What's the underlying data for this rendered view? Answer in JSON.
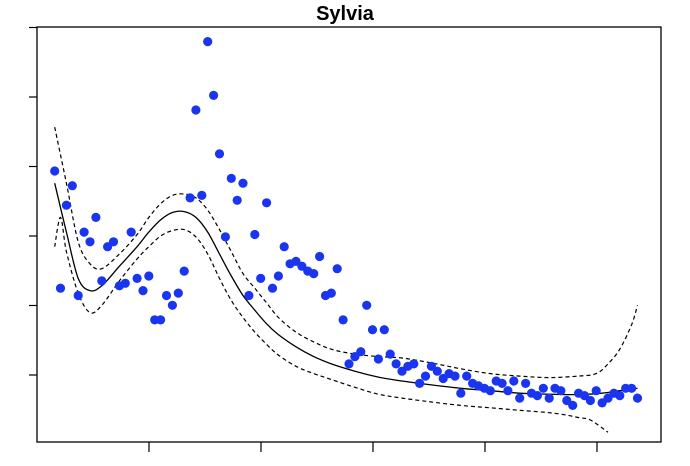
{
  "chart_data": {
    "type": "scatter",
    "title": "Sylvia",
    "xlabel": "",
    "ylabel": "",
    "x_tick_count": 5,
    "y_tick_count": 6,
    "grid": false,
    "legend": "none",
    "point_color": "#1a35f0",
    "line_color": "#000000",
    "points": [
      [
        1,
        5.55
      ],
      [
        2,
        3.15
      ],
      [
        3,
        4.85
      ],
      [
        4,
        5.25
      ],
      [
        5,
        3.0
      ],
      [
        6,
        4.3
      ],
      [
        7,
        4.1
      ],
      [
        8,
        4.6
      ],
      [
        9,
        3.3
      ],
      [
        10,
        4.0
      ],
      [
        11,
        4.1
      ],
      [
        12,
        3.2
      ],
      [
        13,
        3.25
      ],
      [
        14,
        4.3
      ],
      [
        15,
        3.35
      ],
      [
        16,
        3.1
      ],
      [
        17,
        3.4
      ],
      [
        18,
        2.5
      ],
      [
        19,
        2.5
      ],
      [
        20,
        3.0
      ],
      [
        21,
        2.8
      ],
      [
        22,
        3.05
      ],
      [
        23,
        3.5
      ],
      [
        24,
        5.0
      ],
      [
        25,
        6.8
      ],
      [
        26,
        5.05
      ],
      [
        27,
        8.2
      ],
      [
        28,
        7.1
      ],
      [
        29,
        5.9
      ],
      [
        30,
        4.2
      ],
      [
        31,
        5.4
      ],
      [
        32,
        4.95
      ],
      [
        33,
        5.3
      ],
      [
        34,
        3.0
      ],
      [
        35,
        4.25
      ],
      [
        36,
        3.35
      ],
      [
        37,
        4.9
      ],
      [
        38,
        3.15
      ],
      [
        39,
        3.4
      ],
      [
        40,
        4.0
      ],
      [
        41,
        3.65
      ],
      [
        42,
        3.7
      ],
      [
        43,
        3.6
      ],
      [
        44,
        3.5
      ],
      [
        45,
        3.45
      ],
      [
        46,
        3.8
      ],
      [
        47,
        3.0
      ],
      [
        48,
        3.05
      ],
      [
        49,
        3.55
      ],
      [
        50,
        2.5
      ],
      [
        51,
        1.6
      ],
      [
        52,
        1.75
      ],
      [
        53,
        1.85
      ],
      [
        54,
        2.8
      ],
      [
        55,
        2.3
      ],
      [
        56,
        1.7
      ],
      [
        57,
        2.3
      ],
      [
        58,
        1.8
      ],
      [
        59,
        1.6
      ],
      [
        60,
        1.45
      ],
      [
        61,
        1.55
      ],
      [
        62,
        1.6
      ],
      [
        63,
        1.2
      ],
      [
        64,
        1.35
      ],
      [
        65,
        1.55
      ],
      [
        66,
        1.45
      ],
      [
        67,
        1.3
      ],
      [
        68,
        1.4
      ],
      [
        69,
        1.35
      ],
      [
        70,
        1.0
      ],
      [
        71,
        1.35
      ],
      [
        72,
        1.2
      ],
      [
        73,
        1.15
      ],
      [
        74,
        1.1
      ],
      [
        75,
        1.05
      ],
      [
        76,
        1.25
      ],
      [
        77,
        1.2
      ],
      [
        78,
        1.05
      ],
      [
        79,
        1.25
      ],
      [
        80,
        0.9
      ],
      [
        81,
        1.2
      ],
      [
        82,
        1.0
      ],
      [
        83,
        0.95
      ],
      [
        84,
        1.1
      ],
      [
        85,
        0.9
      ],
      [
        86,
        1.1
      ],
      [
        87,
        1.05
      ],
      [
        88,
        0.85
      ],
      [
        89,
        0.75
      ],
      [
        90,
        1.0
      ],
      [
        91,
        0.95
      ],
      [
        92,
        0.85
      ],
      [
        93,
        1.05
      ],
      [
        94,
        0.8
      ],
      [
        95,
        0.9
      ],
      [
        96,
        1.0
      ],
      [
        97,
        0.95
      ],
      [
        98,
        1.1
      ],
      [
        99,
        1.1
      ],
      [
        100,
        0.9
      ]
    ],
    "fit_line": [
      [
        1,
        5.3
      ],
      [
        3,
        4.3
      ],
      [
        5,
        3.35
      ],
      [
        7,
        3.1
      ],
      [
        9,
        3.2
      ],
      [
        12,
        3.6
      ],
      [
        15,
        4.0
      ],
      [
        17,
        4.3
      ],
      [
        19,
        4.55
      ],
      [
        21,
        4.7
      ],
      [
        23,
        4.72
      ],
      [
        25,
        4.6
      ],
      [
        27,
        4.3
      ],
      [
        29,
        3.85
      ],
      [
        31,
        3.4
      ],
      [
        33,
        3.0
      ],
      [
        35,
        2.7
      ],
      [
        37,
        2.42
      ],
      [
        39,
        2.2
      ],
      [
        42,
        1.95
      ],
      [
        45,
        1.75
      ],
      [
        48,
        1.6
      ],
      [
        52,
        1.45
      ],
      [
        56,
        1.33
      ],
      [
        60,
        1.25
      ],
      [
        65,
        1.17
      ],
      [
        70,
        1.1
      ],
      [
        75,
        1.05
      ],
      [
        80,
        1.0
      ],
      [
        85,
        0.98
      ],
      [
        90,
        0.97
      ],
      [
        94,
        1.0
      ],
      [
        97,
        1.05
      ],
      [
        100,
        1.1
      ]
    ],
    "upper_band": [
      [
        1,
        6.45
      ],
      [
        3,
        5.3
      ],
      [
        5,
        4.1
      ],
      [
        7,
        3.65
      ],
      [
        9,
        3.55
      ],
      [
        12,
        3.85
      ],
      [
        15,
        4.25
      ],
      [
        17,
        4.6
      ],
      [
        19,
        4.88
      ],
      [
        21,
        5.05
      ],
      [
        23,
        5.08
      ],
      [
        25,
        5.0
      ],
      [
        27,
        4.75
      ],
      [
        29,
        4.35
      ],
      [
        31,
        3.9
      ],
      [
        33,
        3.45
      ],
      [
        35,
        3.15
      ],
      [
        37,
        2.85
      ],
      [
        39,
        2.55
      ],
      [
        42,
        2.25
      ],
      [
        45,
        2.05
      ],
      [
        48,
        1.9
      ],
      [
        52,
        1.8
      ],
      [
        56,
        1.75
      ],
      [
        60,
        1.72
      ],
      [
        65,
        1.62
      ],
      [
        70,
        1.5
      ],
      [
        75,
        1.4
      ],
      [
        80,
        1.35
      ],
      [
        85,
        1.32
      ],
      [
        90,
        1.35
      ],
      [
        93,
        1.4
      ],
      [
        95,
        1.6
      ],
      [
        97,
        1.9
      ],
      [
        99,
        2.4
      ],
      [
        100,
        2.8
      ]
    ],
    "lower_band": [
      [
        1,
        4.0
      ],
      [
        2,
        4.6
      ],
      [
        3,
        3.9
      ],
      [
        5,
        3.05
      ],
      [
        7,
        2.65
      ],
      [
        9,
        2.8
      ],
      [
        12,
        3.3
      ],
      [
        15,
        3.75
      ],
      [
        17,
        4.0
      ],
      [
        19,
        4.22
      ],
      [
        21,
        4.33
      ],
      [
        23,
        4.35
      ],
      [
        25,
        4.2
      ],
      [
        27,
        3.85
      ],
      [
        29,
        3.35
      ],
      [
        31,
        2.9
      ],
      [
        33,
        2.55
      ],
      [
        35,
        2.25
      ],
      [
        37,
        2.0
      ],
      [
        39,
        1.78
      ],
      [
        42,
        1.55
      ],
      [
        45,
        1.4
      ],
      [
        48,
        1.28
      ],
      [
        52,
        1.12
      ],
      [
        56,
        0.98
      ],
      [
        60,
        0.9
      ],
      [
        65,
        0.82
      ],
      [
        70,
        0.75
      ],
      [
        75,
        0.7
      ],
      [
        80,
        0.65
      ],
      [
        85,
        0.6
      ],
      [
        88,
        0.55
      ],
      [
        90,
        0.5
      ],
      [
        92,
        0.45
      ],
      [
        95,
        0.2
      ]
    ]
  }
}
